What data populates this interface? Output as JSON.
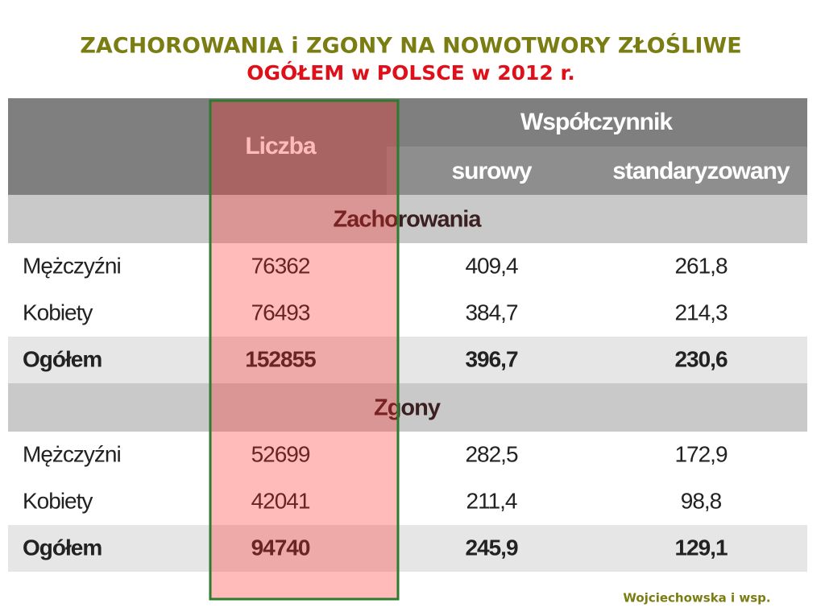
{
  "title": {
    "line1": "ZACHOROWANIA i ZGONY NA NOWOTWORY ZŁOŚLIWE",
    "line2": "OGÓŁEM w POLSCE w 2012 r."
  },
  "table": {
    "header": {
      "count": "Liczba",
      "group": "Współczynnik",
      "crude": "surowy",
      "standardized": "standaryzowany"
    },
    "sections": [
      {
        "title": "Zachorowania",
        "rows": [
          [
            "Mężczyźni",
            "76362",
            "409,4",
            "261,8"
          ],
          [
            "Kobiety",
            "76493",
            "384,7",
            "214,3"
          ],
          [
            "Ogółem",
            "152855",
            "396,7",
            "230,6"
          ]
        ]
      },
      {
        "title": "Zgony",
        "rows": [
          [
            "Mężczyźni",
            "52699",
            "282,5",
            "172,9"
          ],
          [
            "Kobiety",
            "42041",
            "211,4",
            "98,8"
          ],
          [
            "Ogółem",
            "94740",
            "245,9",
            "129,1"
          ]
        ]
      }
    ]
  },
  "source": "Wojciechowska i wsp."
}
